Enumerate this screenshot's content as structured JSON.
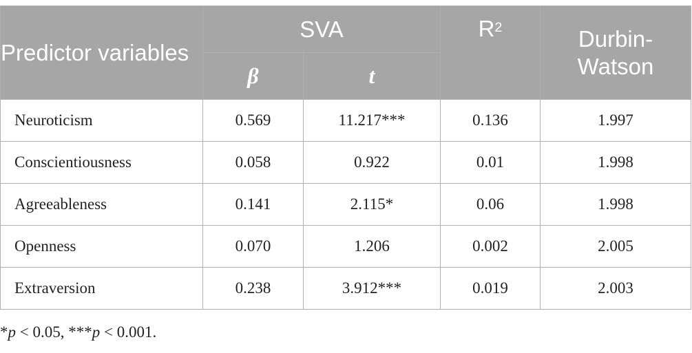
{
  "table": {
    "headers": {
      "predictor": "Predictor variables",
      "svag": "SVA",
      "r2_base": "R",
      "r2_sup": "2",
      "durbin_watson": "Durbin-Watson",
      "beta": "β",
      "t": "t"
    },
    "rows": [
      {
        "predictor": "Neuroticism",
        "beta": "0.569",
        "t": "11.217***",
        "r2": "0.136",
        "dw": "1.997"
      },
      {
        "predictor": "Conscientiousness",
        "beta": "0.058",
        "t": "0.922",
        "r2": "0.01",
        "dw": "1.998"
      },
      {
        "predictor": "Agreeableness",
        "beta": "0.141",
        "t": "2.115*",
        "r2": "0.06",
        "dw": "1.998"
      },
      {
        "predictor": "Openness",
        "beta": "0.070",
        "t": "1.206",
        "r2": "0.002",
        "dw": "2.005"
      },
      {
        "predictor": "Extraversion",
        "beta": "0.238",
        "t": "3.912***",
        "r2": "0.019",
        "dw": "2.003"
      }
    ]
  },
  "footnote": {
    "part1_prefix": "*",
    "part1_p": "p",
    "part1_value": " < 0.05, ",
    "part2_prefix": "***",
    "part2_p": "p",
    "part2_value": " < 0.001."
  },
  "colors": {
    "header_bg": "#a6a6a6",
    "header_text": "#ffffff",
    "border": "#b0b0b0",
    "body_text": "#222222"
  }
}
